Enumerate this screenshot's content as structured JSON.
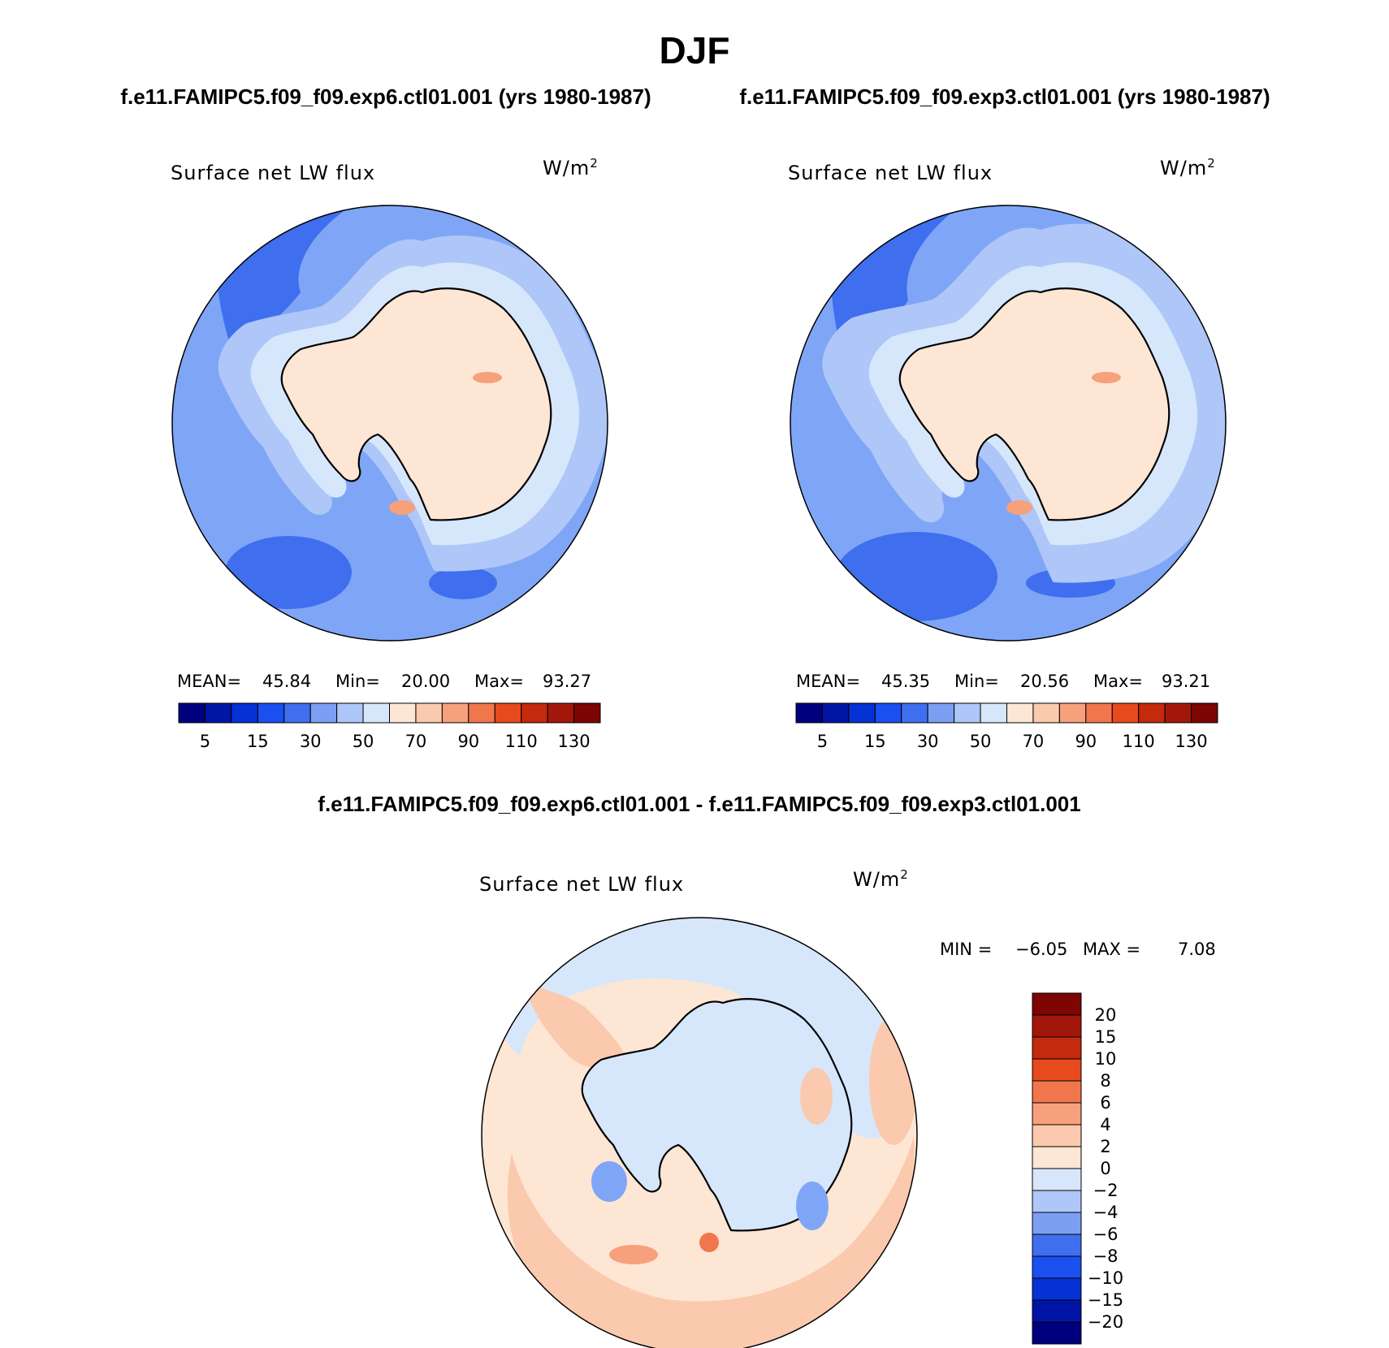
{
  "figure": {
    "season": "DJF",
    "case_titles": [
      "f.e11.FAMIPC5.f09_f09.exp6.ctl01.001 (yrs 1980-1987)",
      "f.e11.FAMIPC5.f09_f09.exp3.ctl01.001 (yrs 1980-1987)"
    ],
    "diff_title": "f.e11.FAMIPC5.f09_f09.exp6.ctl01.001 - f.e11.FAMIPC5.f09_f09.exp3.ctl01.001"
  },
  "chart_data": [
    {
      "type": "heatmap",
      "projection": "south polar stereographic",
      "variable": "Surface net LW flux",
      "units": "W/m2",
      "stats": {
        "mean_label": "MEAN=",
        "mean": "45.84",
        "min_label": "Min=",
        "min": "20.00",
        "max_label": "Max=",
        "max": "93.27"
      },
      "colorbar_ticks": [
        "5",
        "15",
        "30",
        "50",
        "70",
        "90",
        "110",
        "130"
      ],
      "colorbar_levels": [
        5,
        10,
        15,
        20,
        30,
        40,
        50,
        60,
        70,
        80,
        90,
        100,
        110,
        120,
        130
      ],
      "colors": [
        "#00007f",
        "#0015a6",
        "#0631d4",
        "#1a4ff0",
        "#3f6fee",
        "#7a9ff3",
        "#aec7f8",
        "#d6e7fb",
        "#fde6d4",
        "#fbc9ad",
        "#f6a07c",
        "#f2764c",
        "#e74a1d",
        "#c42a0c",
        "#a3170a",
        "#7d0504"
      ]
    },
    {
      "type": "heatmap",
      "projection": "south polar stereographic",
      "variable": "Surface net LW flux",
      "units": "W/m2",
      "stats": {
        "mean_label": "MEAN=",
        "mean": "45.35",
        "min_label": "Min=",
        "min": "20.56",
        "max_label": "Max=",
        "max": "93.21"
      },
      "colorbar_ticks": [
        "5",
        "15",
        "30",
        "50",
        "70",
        "90",
        "110",
        "130"
      ],
      "colorbar_levels": [
        5,
        10,
        15,
        20,
        30,
        40,
        50,
        60,
        70,
        80,
        90,
        100,
        110,
        120,
        130
      ],
      "colors": [
        "#00007f",
        "#0015a6",
        "#0631d4",
        "#1a4ff0",
        "#3f6fee",
        "#7a9ff3",
        "#aec7f8",
        "#d6e7fb",
        "#fde6d4",
        "#fbc9ad",
        "#f6a07c",
        "#f2764c",
        "#e74a1d",
        "#c42a0c",
        "#a3170a",
        "#7d0504"
      ]
    },
    {
      "type": "heatmap",
      "projection": "south polar stereographic",
      "variable": "Surface net LW flux",
      "units": "W/m2",
      "stats": {
        "min_label": "MIN =",
        "min": "−6.05",
        "max_label": "MAX =",
        "max": "7.08"
      },
      "colorbar_ticks": [
        "20",
        "15",
        "10",
        "8",
        "6",
        "4",
        "2",
        "0",
        "−2",
        "−4",
        "−6",
        "−8",
        "−10",
        "−15",
        "−20"
      ],
      "colors": [
        "#7d0504",
        "#a3170a",
        "#c42a0c",
        "#e74a1d",
        "#f2764c",
        "#f6a07c",
        "#fbc9ad",
        "#fde6d4",
        "#d6e7fb",
        "#aec7f8",
        "#7a9ff3",
        "#3f6fee",
        "#1a4ff0",
        "#0631d4",
        "#0015a6",
        "#00007f"
      ]
    }
  ],
  "colors": {
    "ocean_far": "#7fa6f6",
    "ocean_mid": "#aec7f8",
    "coast_band": "#d6e7fb",
    "land": "#fde6d4",
    "deep_blue": "#3f6fee",
    "diff_neg": "#d6e7fb",
    "diff_pos": "#fde6d4",
    "diff_pos2": "#fbc9ad"
  }
}
